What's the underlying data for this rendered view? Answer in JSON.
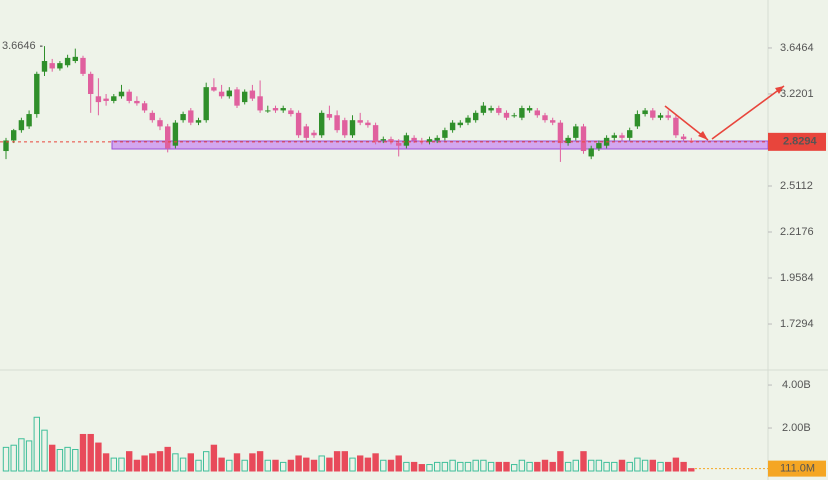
{
  "chart_data": {
    "type": "candlestick",
    "log_scale": true,
    "ylim": [
      1.5356,
      4.151
    ],
    "yticks": [
      3.6464,
      3.2201,
      2.5112,
      2.2176,
      1.9584,
      1.7294
    ],
    "high_label": 3.6646,
    "last_price": 2.8294,
    "up_color": "#2f8f2a",
    "down_color": "#e0609e",
    "open": [
      2.76,
      2.84,
      2.92,
      2.95,
      3.05,
      3.42,
      3.5,
      3.45,
      3.48,
      3.52,
      3.55,
      3.4,
      3.2,
      3.18,
      3.16,
      3.2,
      3.24,
      3.16,
      3.14,
      3.06,
      3.0,
      2.95,
      2.8,
      3.0,
      3.08,
      2.98,
      3.0,
      3.28,
      3.24,
      3.2,
      3.26,
      3.15,
      3.25,
      3.2,
      3.08,
      3.1,
      3.08,
      3.08,
      3.06,
      2.95,
      2.9,
      2.88,
      3.05,
      3.04,
      3.0,
      2.88,
      3.0,
      2.98,
      2.96,
      2.84,
      2.85,
      2.82,
      2.8,
      2.86,
      2.84,
      2.83,
      2.84,
      2.86,
      2.92,
      2.96,
      2.98,
      3.0,
      3.06,
      3.08,
      3.1,
      3.06,
      3.04,
      3.02,
      3.08,
      3.08,
      3.04,
      3.0,
      2.98,
      2.82,
      2.86,
      2.95,
      2.72,
      2.78,
      2.8,
      2.86,
      2.88,
      2.86,
      2.95,
      3.05,
      3.08,
      3.02,
      3.04,
      3.02,
      2.87,
      2.84
    ],
    "high": [
      2.86,
      2.93,
      3.02,
      3.08,
      3.42,
      3.6646,
      3.54,
      3.52,
      3.58,
      3.64,
      3.57,
      3.42,
      3.36,
      3.22,
      3.22,
      3.3,
      3.26,
      3.2,
      3.16,
      3.08,
      3.02,
      2.97,
      3.0,
      3.07,
      3.1,
      3.02,
      3.32,
      3.36,
      3.3,
      3.28,
      3.28,
      3.26,
      3.3,
      3.34,
      3.12,
      3.12,
      3.12,
      3.1,
      3.08,
      2.97,
      2.92,
      3.08,
      3.12,
      3.08,
      3.02,
      3.04,
      3.06,
      3.0,
      2.98,
      2.87,
      2.87,
      2.85,
      2.9,
      2.88,
      2.86,
      2.87,
      2.88,
      2.94,
      3.0,
      3.0,
      3.04,
      3.08,
      3.15,
      3.12,
      3.12,
      3.08,
      3.06,
      3.12,
      3.12,
      3.1,
      3.06,
      3.02,
      3.0,
      2.88,
      2.97,
      2.97,
      2.8,
      2.84,
      2.88,
      2.9,
      2.9,
      2.94,
      3.08,
      3.1,
      3.1,
      3.06,
      3.08,
      3.04,
      2.89,
      2.86
    ],
    "low": [
      2.7,
      2.82,
      2.9,
      2.93,
      3.02,
      3.38,
      3.42,
      3.43,
      3.46,
      3.5,
      3.38,
      3.06,
      3.04,
      3.12,
      3.14,
      3.18,
      3.14,
      3.12,
      3.06,
      2.98,
      2.92,
      2.75,
      2.78,
      2.98,
      2.96,
      2.96,
      2.98,
      3.24,
      3.18,
      3.18,
      3.1,
      3.13,
      3.16,
      3.06,
      3.06,
      3.06,
      3.06,
      3.03,
      2.86,
      2.84,
      2.86,
      2.86,
      3.0,
      2.9,
      2.86,
      2.86,
      2.96,
      2.94,
      2.81,
      2.82,
      2.81,
      2.72,
      2.78,
      2.82,
      2.81,
      2.81,
      2.82,
      2.84,
      2.9,
      2.94,
      2.96,
      2.98,
      3.04,
      3.06,
      3.04,
      3.0,
      3.02,
      3.0,
      3.06,
      3.02,
      2.98,
      2.96,
      2.68,
      2.8,
      2.84,
      2.74,
      2.7,
      2.76,
      2.78,
      2.84,
      2.84,
      2.84,
      2.93,
      3.03,
      3.0,
      3.0,
      3.0,
      2.86,
      2.84,
      2.82
    ],
    "close": [
      2.84,
      2.92,
      3.0,
      3.05,
      3.4,
      3.52,
      3.45,
      3.5,
      3.55,
      3.56,
      3.4,
      3.22,
      3.15,
      3.16,
      3.2,
      3.24,
      3.16,
      3.14,
      3.08,
      3.0,
      2.95,
      2.78,
      2.98,
      3.05,
      2.98,
      3.0,
      3.28,
      3.25,
      3.2,
      3.25,
      3.12,
      3.24,
      3.18,
      3.08,
      3.08,
      3.08,
      3.1,
      3.05,
      2.88,
      2.86,
      2.88,
      3.06,
      3.02,
      2.92,
      2.88,
      3.0,
      2.98,
      2.96,
      2.83,
      2.85,
      2.83,
      2.8,
      2.88,
      2.84,
      2.83,
      2.85,
      2.86,
      2.92,
      2.98,
      2.98,
      3.02,
      3.06,
      3.12,
      3.1,
      3.06,
      3.02,
      3.04,
      3.1,
      3.1,
      3.04,
      3.0,
      2.98,
      2.82,
      2.86,
      2.95,
      2.76,
      2.78,
      2.82,
      2.86,
      2.88,
      2.86,
      2.92,
      3.05,
      3.08,
      3.02,
      3.04,
      3.02,
      2.88,
      2.85,
      2.8294
    ],
    "volume_ylim": [
      0,
      4.7
    ],
    "volume_ticks": [
      {
        "value": 4,
        "label": "4.00B"
      },
      {
        "value": 2,
        "label": "2.00B"
      }
    ],
    "last_volume_label": {
      "value": 0.111,
      "label": "111.0M"
    },
    "volume": [
      1.1,
      1.2,
      1.5,
      1.4,
      2.5,
      1.9,
      1.2,
      1.0,
      1.1,
      1.0,
      1.7,
      1.7,
      1.3,
      0.8,
      0.6,
      0.6,
      0.9,
      0.5,
      0.7,
      0.8,
      0.9,
      1.1,
      0.8,
      0.6,
      0.8,
      0.5,
      0.9,
      1.2,
      0.6,
      0.5,
      0.8,
      0.5,
      0.8,
      0.9,
      0.5,
      0.5,
      0.4,
      0.5,
      0.7,
      0.6,
      0.5,
      0.7,
      0.6,
      0.9,
      0.9,
      0.6,
      0.7,
      0.6,
      0.8,
      0.5,
      0.5,
      0.7,
      0.4,
      0.4,
      0.3,
      0.3,
      0.4,
      0.4,
      0.5,
      0.4,
      0.4,
      0.5,
      0.5,
      0.4,
      0.4,
      0.4,
      0.3,
      0.5,
      0.4,
      0.4,
      0.5,
      0.4,
      0.9,
      0.4,
      0.5,
      0.9,
      0.5,
      0.5,
      0.4,
      0.4,
      0.5,
      0.4,
      0.6,
      0.5,
      0.5,
      0.4,
      0.4,
      0.6,
      0.4,
      0.111
    ]
  }
}
